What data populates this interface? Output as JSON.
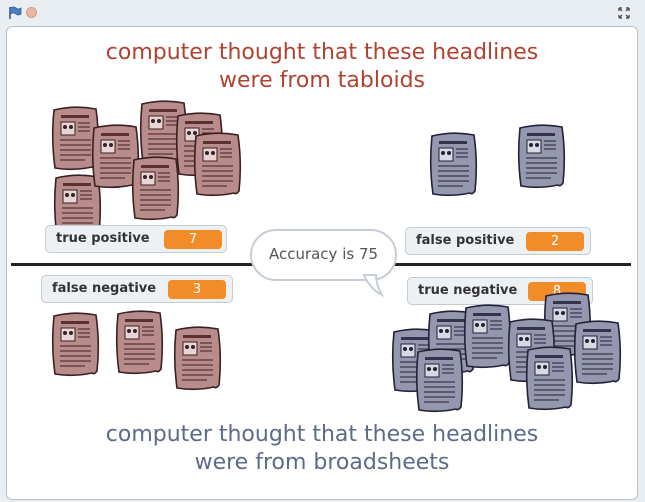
{
  "toolbar": {
    "green_flag_icon": "flag-icon",
    "stop_icon": "stop-icon",
    "fullscreen_icon": "fullscreen-icon"
  },
  "headings": {
    "top_line1": "computer thought that these headlines",
    "top_line2": "were from  tabloids",
    "bottom_line1": "computer thought that these headlines",
    "bottom_line2": "were from  broadsheets"
  },
  "counters": {
    "true_positive": {
      "label": "true positive",
      "value": "7"
    },
    "false_positive": {
      "label": "false positive",
      "value": "2"
    },
    "false_negative": {
      "label": "false negative",
      "value": "3"
    },
    "true_negative": {
      "label": "true negative",
      "value": "8"
    }
  },
  "speech": {
    "text": "Accuracy is 75"
  },
  "colors": {
    "tabloid_newspaper": "#b98c8c",
    "broadsheet_newspaper": "#9497ad",
    "top_heading": "#b0432f",
    "bottom_heading": "#5d6a88",
    "counter_value": "#f28c28"
  }
}
